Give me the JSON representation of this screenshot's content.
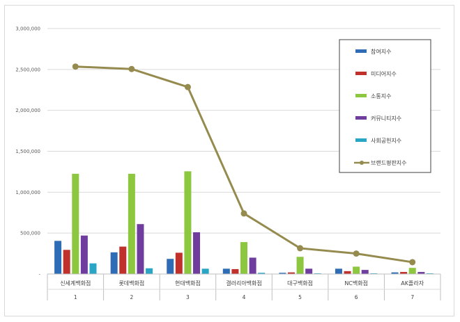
{
  "chart_data": {
    "type": "bar",
    "categories": [
      "신세계백화점",
      "롯데백화점",
      "현대백화점",
      "갤러리아백화점",
      "대구백화점",
      "NC백화점",
      "AK플라자"
    ],
    "ranks": [
      "1",
      "2",
      "3",
      "4",
      "5",
      "6",
      "7"
    ],
    "ylim": [
      0,
      3000000
    ],
    "yticks": [
      0,
      500000,
      1000000,
      1500000,
      2000000,
      2500000,
      3000000
    ],
    "ytick_labels": [
      "-",
      "500,000",
      "1,000,000",
      "1,500,000",
      "2,000,000",
      "2,500,000",
      "3,000,000"
    ],
    "grid": true,
    "legend_position": "top-right",
    "series": [
      {
        "name": "참여지수",
        "type": "bar",
        "color": "#2e6cb5",
        "values": [
          405000,
          265000,
          185000,
          65000,
          15000,
          65000,
          20000
        ]
      },
      {
        "name": "미디어지수",
        "type": "bar",
        "color": "#c0312c",
        "values": [
          295000,
          335000,
          260000,
          60000,
          20000,
          35000,
          25000
        ]
      },
      {
        "name": "소통지수",
        "type": "bar",
        "color": "#8dc63f",
        "values": [
          1225000,
          1225000,
          1255000,
          390000,
          210000,
          90000,
          75000
        ]
      },
      {
        "name": "커뮤니티지수",
        "type": "bar",
        "color": "#6f3d9e",
        "values": [
          470000,
          610000,
          510000,
          200000,
          65000,
          50000,
          25000
        ]
      },
      {
        "name": "사회공헌지수",
        "type": "bar",
        "color": "#29a6c6",
        "values": [
          130000,
          70000,
          65000,
          15000,
          5000,
          5000,
          5000
        ]
      },
      {
        "name": "브랜드평판지수",
        "type": "line",
        "color": "#958b4e",
        "values": [
          2535000,
          2505000,
          2285000,
          740000,
          315000,
          250000,
          145000
        ]
      }
    ]
  }
}
